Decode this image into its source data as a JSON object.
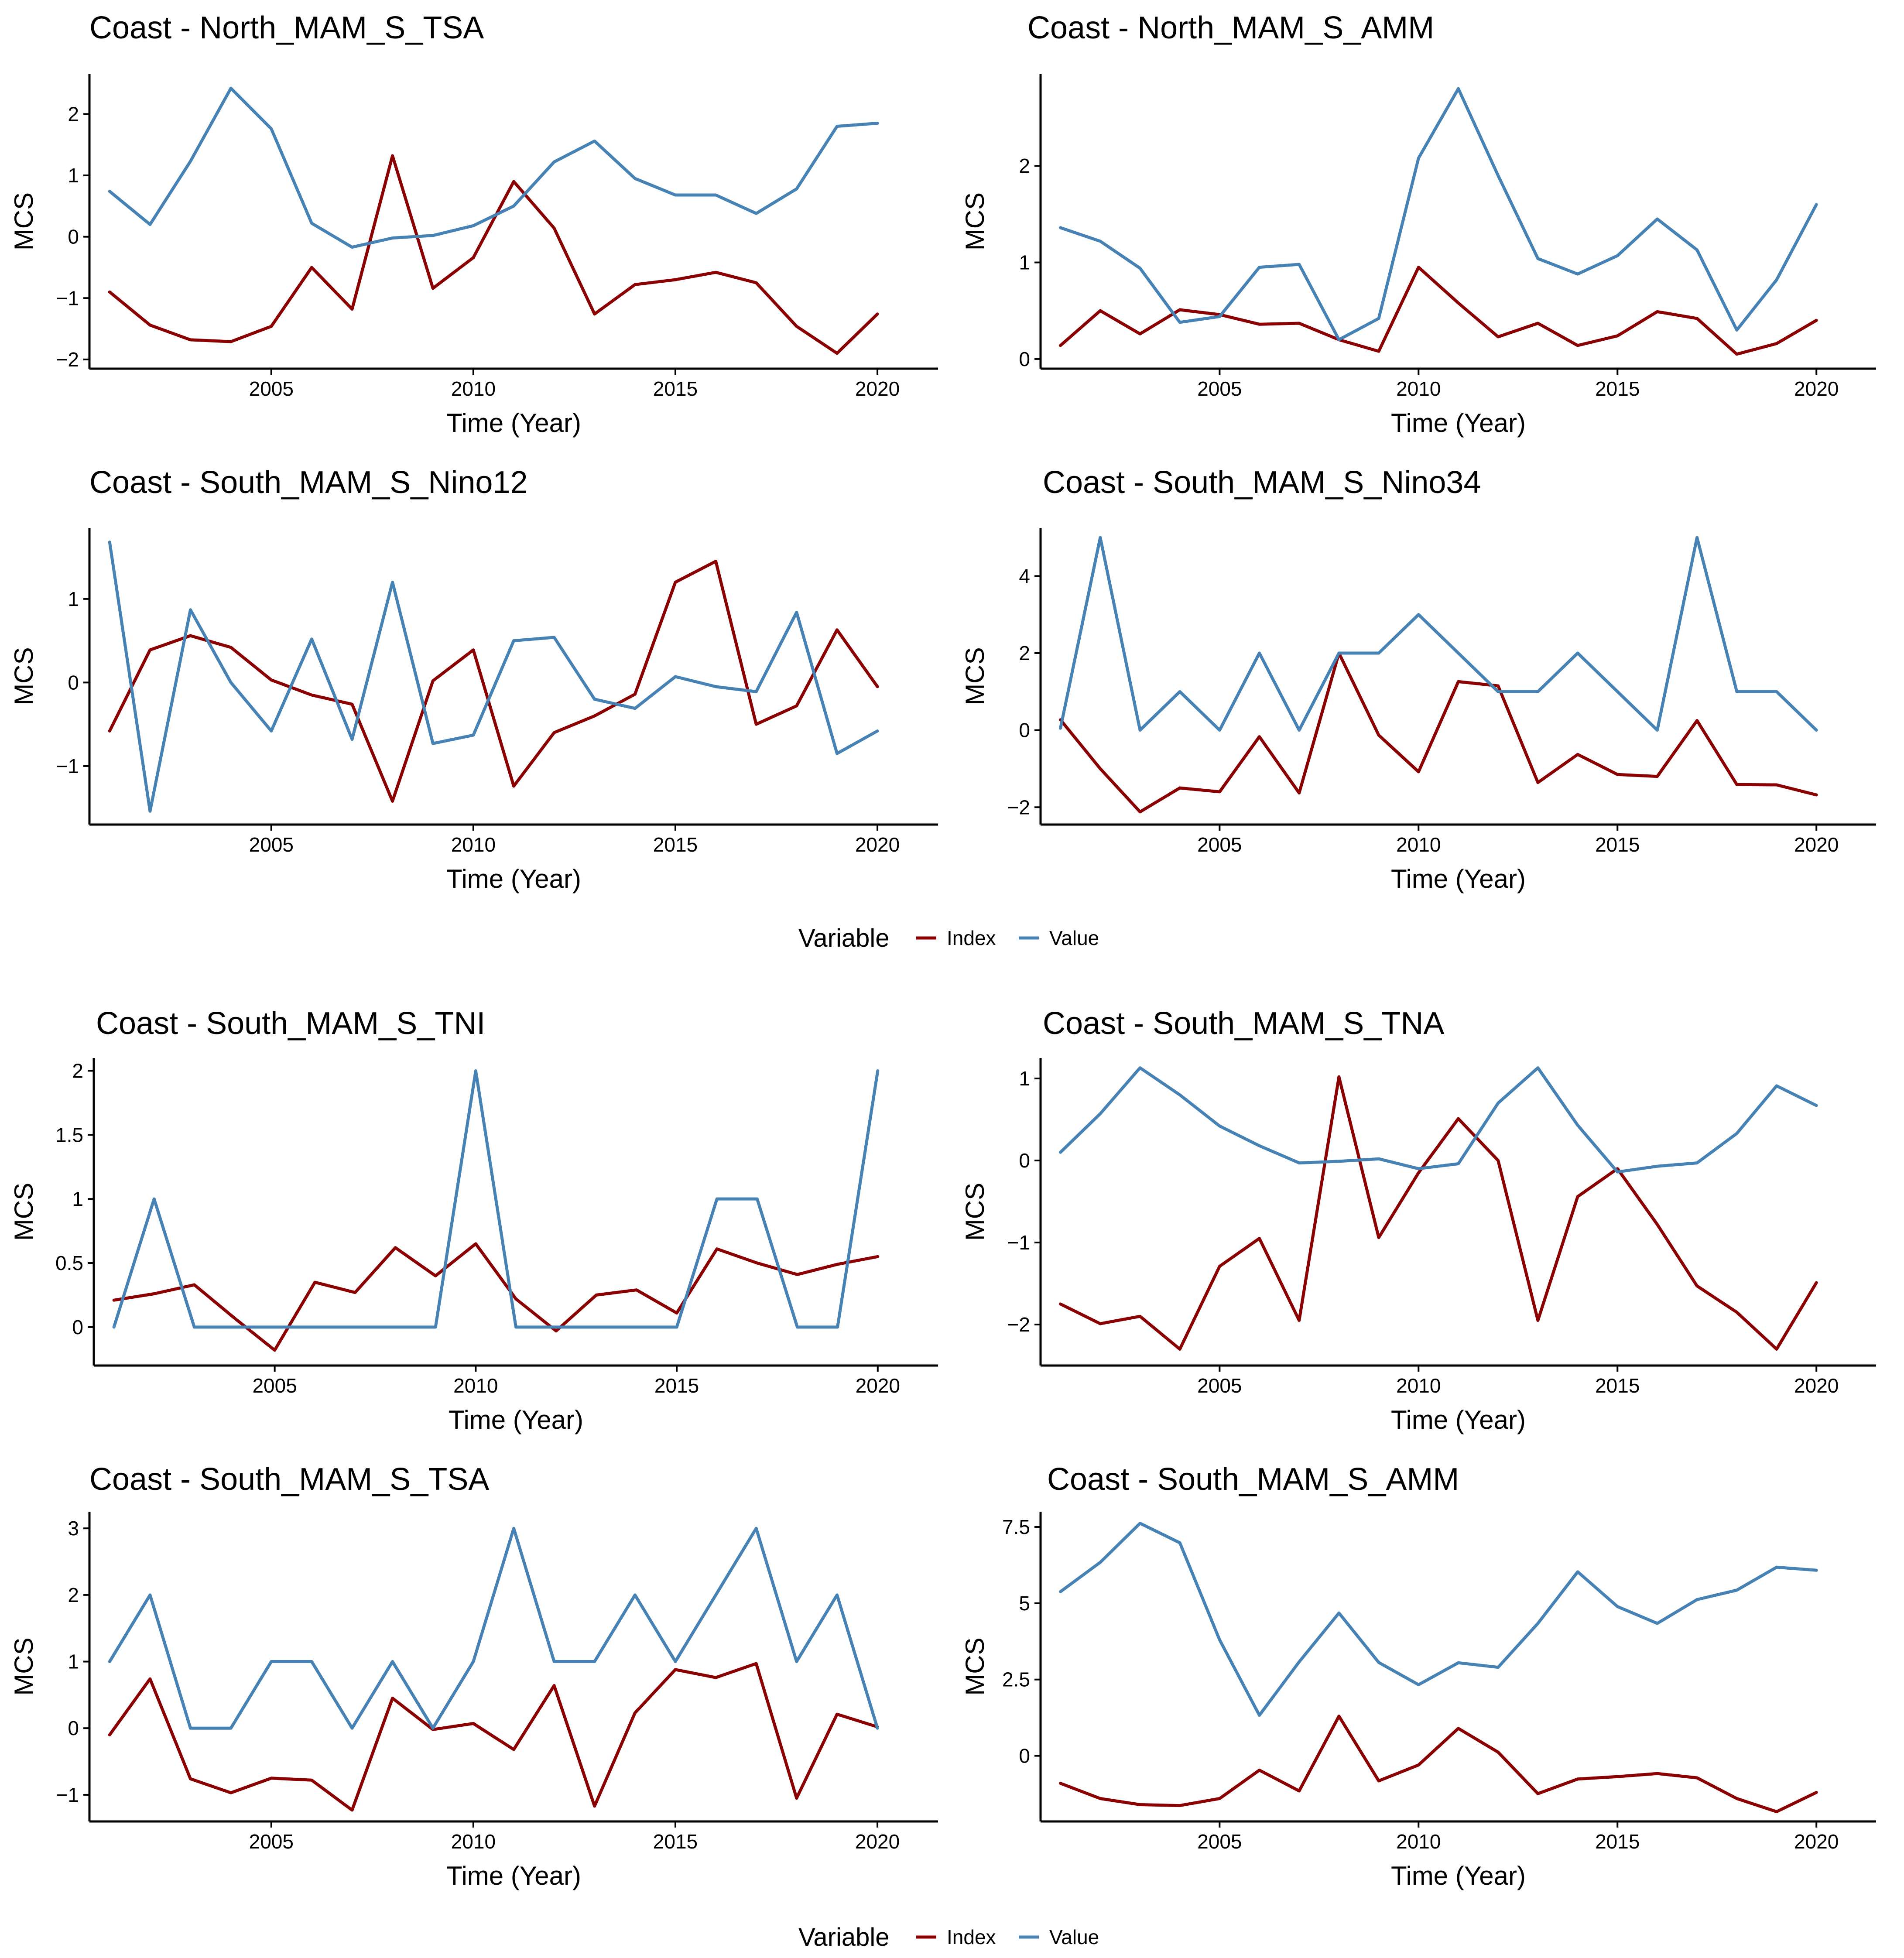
{
  "colors": {
    "index": "#8B0000",
    "value": "#4682B4"
  },
  "chart_data": [
    {
      "type": "line",
      "title": "Coast - North_MAM_S_TSA",
      "xlabel": "Time (Year)",
      "ylabel": "MCS",
      "xlim": [
        2000.5,
        2021.5
      ],
      "ylim": [
        -2.15,
        2.65
      ],
      "xticks": [
        2005,
        2010,
        2015,
        2020
      ],
      "xtick_labels": [
        "2005",
        "2010",
        "2015",
        "2020"
      ],
      "yticks": [
        -2,
        -1,
        0,
        1,
        2
      ],
      "ytick_labels": [
        "−2",
        "−1",
        "0",
        "1",
        "2"
      ],
      "x": [
        2001,
        2002,
        2003,
        2004,
        2005,
        2006,
        2007,
        2008,
        2009,
        2010,
        2011,
        2012,
        2013,
        2014,
        2015,
        2016,
        2017,
        2018,
        2019,
        2020
      ],
      "series": [
        {
          "name": "Index",
          "values": [
            -0.9,
            -1.44,
            -1.68,
            -1.71,
            -1.46,
            -0.5,
            -1.18,
            1.32,
            -0.84,
            -0.34,
            0.9,
            0.14,
            -1.26,
            -0.78,
            -0.7,
            -0.58,
            -0.75,
            -1.46,
            -1.9,
            -1.26
          ]
        },
        {
          "name": "Value",
          "values": [
            0.74,
            0.2,
            1.23,
            2.42,
            1.76,
            0.22,
            -0.17,
            -0.02,
            0.02,
            0.18,
            0.5,
            1.22,
            1.56,
            0.95,
            0.68,
            0.68,
            0.38,
            0.78,
            1.8,
            1.85
          ]
        }
      ]
    },
    {
      "type": "line",
      "title": "Coast - North_MAM_S_AMM",
      "xlabel": "Time (Year)",
      "ylabel": "MCS",
      "xlim": [
        2000.5,
        2021.5
      ],
      "ylim": [
        -0.1,
        2.95
      ],
      "xticks": [
        2005,
        2010,
        2015,
        2020
      ],
      "xtick_labels": [
        "2005",
        "2010",
        "2015",
        "2020"
      ],
      "yticks": [
        0,
        1,
        2
      ],
      "ytick_labels": [
        "0",
        "1",
        "2"
      ],
      "x": [
        2001,
        2002,
        2003,
        2004,
        2005,
        2006,
        2007,
        2008,
        2009,
        2010,
        2011,
        2012,
        2013,
        2014,
        2015,
        2016,
        2017,
        2018,
        2019,
        2020
      ],
      "series": [
        {
          "name": "Index",
          "values": [
            0.14,
            0.5,
            0.26,
            0.51,
            0.46,
            0.36,
            0.37,
            0.2,
            0.08,
            0.95,
            0.58,
            0.23,
            0.37,
            0.14,
            0.24,
            0.49,
            0.42,
            0.05,
            0.16,
            0.4
          ]
        },
        {
          "name": "Value",
          "values": [
            1.36,
            1.22,
            0.94,
            0.38,
            0.44,
            0.95,
            0.98,
            0.2,
            0.42,
            2.08,
            2.8,
            1.9,
            1.04,
            0.88,
            1.07,
            1.45,
            1.13,
            0.3,
            0.82,
            1.6
          ]
        }
      ]
    },
    {
      "type": "line",
      "title": "Coast - South_MAM_S_Nino12",
      "xlabel": "Time (Year)",
      "ylabel": "MCS",
      "xlim": [
        2000.5,
        2021.5
      ],
      "ylim": [
        -1.7,
        1.85
      ],
      "xticks": [
        2005,
        2010,
        2015,
        2020
      ],
      "xtick_labels": [
        "2005",
        "2010",
        "2015",
        "2020"
      ],
      "yticks": [
        -1,
        0,
        1
      ],
      "ytick_labels": [
        "−1",
        "0",
        "1"
      ],
      "x": [
        2001,
        2002,
        2003,
        2004,
        2005,
        2006,
        2007,
        2008,
        2009,
        2010,
        2011,
        2012,
        2013,
        2014,
        2015,
        2016,
        2017,
        2018,
        2019,
        2020
      ],
      "series": [
        {
          "name": "Index",
          "values": [
            -0.58,
            0.39,
            0.56,
            0.42,
            0.03,
            -0.15,
            -0.26,
            -1.42,
            0.02,
            0.39,
            -1.24,
            -0.6,
            -0.4,
            -0.14,
            1.2,
            1.45,
            -0.5,
            -0.28,
            0.63,
            -0.05
          ]
        },
        {
          "name": "Value",
          "values": [
            1.68,
            -1.54,
            0.87,
            0.0,
            -0.58,
            0.52,
            -0.68,
            1.2,
            -0.73,
            -0.63,
            0.5,
            0.54,
            -0.2,
            -0.31,
            0.07,
            -0.05,
            -0.11,
            0.84,
            -0.85,
            -0.58
          ]
        }
      ]
    },
    {
      "type": "line",
      "title": "Coast - South_MAM_S_Nino34",
      "xlabel": "Time (Year)",
      "ylabel": "MCS",
      "xlim": [
        2000.5,
        2021.5
      ],
      "ylim": [
        -2.45,
        5.25
      ],
      "xticks": [
        2005,
        2010,
        2015,
        2020
      ],
      "xtick_labels": [
        "2005",
        "2010",
        "2015",
        "2020"
      ],
      "yticks": [
        -2,
        0,
        2,
        4
      ],
      "ytick_labels": [
        "−2",
        "0",
        "2",
        "4"
      ],
      "x": [
        2001,
        2002,
        2003,
        2004,
        2005,
        2006,
        2007,
        2008,
        2009,
        2010,
        2011,
        2012,
        2013,
        2014,
        2015,
        2016,
        2017,
        2018,
        2019,
        2020
      ],
      "series": [
        {
          "name": "Index",
          "values": [
            0.27,
            -1.0,
            -2.12,
            -1.5,
            -1.6,
            -0.17,
            -1.63,
            2.0,
            -0.13,
            -1.08,
            1.26,
            1.15,
            -1.36,
            -0.63,
            -1.15,
            -1.2,
            0.25,
            -1.41,
            -1.42,
            -1.68
          ]
        },
        {
          "name": "Value",
          "values": [
            0.05,
            5.0,
            0.0,
            1.0,
            0.0,
            2.0,
            0.0,
            2.0,
            2.0,
            3.0,
            2.0,
            1.0,
            1.0,
            2.0,
            1.0,
            0.0,
            5.0,
            1.0,
            1.0,
            0.0
          ]
        }
      ]
    },
    {
      "type": "line",
      "title": "Coast - South_MAM_S_TNI",
      "xlabel": "Time (Year)",
      "ylabel": "MCS",
      "xlim": [
        2000.5,
        2021.5
      ],
      "ylim": [
        -0.3,
        2.1
      ],
      "xticks": [
        2005,
        2010,
        2015,
        2020
      ],
      "xtick_labels": [
        "2005",
        "2010",
        "2015",
        "2020"
      ],
      "yticks": [
        0,
        0.5,
        1,
        1.5,
        2
      ],
      "ytick_labels": [
        "0",
        "0.5",
        "1",
        "1.5",
        "2"
      ],
      "x": [
        2001,
        2002,
        2003,
        2004,
        2005,
        2006,
        2007,
        2008,
        2009,
        2010,
        2011,
        2012,
        2013,
        2014,
        2015,
        2016,
        2017,
        2018,
        2019,
        2020
      ],
      "series": [
        {
          "name": "Index",
          "values": [
            0.21,
            0.26,
            0.33,
            0.07,
            -0.18,
            0.35,
            0.27,
            0.62,
            0.4,
            0.65,
            0.22,
            -0.03,
            0.25,
            0.29,
            0.11,
            0.61,
            0.5,
            0.41,
            0.49,
            0.55
          ]
        },
        {
          "name": "Value",
          "values": [
            0.0,
            1.0,
            0.0,
            0.0,
            0.0,
            0.0,
            0.0,
            0.0,
            0.0,
            2.0,
            0.0,
            0.0,
            0.0,
            0.0,
            0.0,
            1.0,
            1.0,
            0.0,
            0.0,
            2.0
          ]
        }
      ]
    },
    {
      "type": "line",
      "title": "Coast - South_MAM_S_TNA",
      "xlabel": "Time (Year)",
      "ylabel": "MCS",
      "xlim": [
        2000.5,
        2021.5
      ],
      "ylim": [
        -2.5,
        1.25
      ],
      "xticks": [
        2005,
        2010,
        2015,
        2020
      ],
      "xtick_labels": [
        "2005",
        "2010",
        "2015",
        "2020"
      ],
      "yticks": [
        -2,
        -1,
        0,
        1
      ],
      "ytick_labels": [
        "−2",
        "−1",
        "0",
        "1"
      ],
      "x": [
        2001,
        2002,
        2003,
        2004,
        2005,
        2006,
        2007,
        2008,
        2009,
        2010,
        2011,
        2012,
        2013,
        2014,
        2015,
        2016,
        2017,
        2018,
        2019,
        2020
      ],
      "series": [
        {
          "name": "Index",
          "values": [
            -1.75,
            -1.99,
            -1.9,
            -2.3,
            -1.29,
            -0.95,
            -1.95,
            1.02,
            -0.94,
            -0.15,
            0.51,
            0.0,
            -1.95,
            -0.44,
            -0.1,
            -0.78,
            -1.53,
            -1.85,
            -2.3,
            -1.49
          ]
        },
        {
          "name": "Value",
          "values": [
            0.1,
            0.57,
            1.13,
            0.8,
            0.42,
            0.18,
            -0.03,
            -0.01,
            0.02,
            -0.1,
            -0.04,
            0.7,
            1.13,
            0.43,
            -0.14,
            -0.07,
            -0.03,
            0.33,
            0.91,
            0.67
          ]
        }
      ]
    },
    {
      "type": "line",
      "title": "Coast - South_MAM_S_TSA",
      "xlabel": "Time (Year)",
      "ylabel": "MCS",
      "xlim": [
        2000.5,
        2021.5
      ],
      "ylim": [
        -1.4,
        3.25
      ],
      "xticks": [
        2005,
        2010,
        2015,
        2020
      ],
      "xtick_labels": [
        "2005",
        "2010",
        "2015",
        "2020"
      ],
      "yticks": [
        -1,
        0,
        1,
        2,
        3
      ],
      "ytick_labels": [
        "−1",
        "0",
        "1",
        "2",
        "3"
      ],
      "x": [
        2001,
        2002,
        2003,
        2004,
        2005,
        2006,
        2007,
        2008,
        2009,
        2010,
        2011,
        2012,
        2013,
        2014,
        2015,
        2016,
        2017,
        2018,
        2019,
        2020
      ],
      "series": [
        {
          "name": "Index",
          "values": [
            -0.1,
            0.74,
            -0.76,
            -0.97,
            -0.75,
            -0.78,
            -1.23,
            0.45,
            -0.02,
            0.07,
            -0.32,
            0.64,
            -1.17,
            0.23,
            0.88,
            0.76,
            0.97,
            -1.05,
            0.21,
            0.02
          ]
        },
        {
          "name": "Value",
          "values": [
            1.0,
            2.0,
            0.0,
            0.0,
            1.0,
            1.0,
            0.0,
            1.0,
            0.0,
            1.0,
            3.0,
            1.0,
            1.0,
            2.0,
            1.0,
            2.0,
            3.0,
            1.0,
            2.0,
            0.0
          ]
        }
      ]
    },
    {
      "type": "line",
      "title": "Coast - South_MAM_S_AMM",
      "xlabel": "Time (Year)",
      "ylabel": "MCS",
      "xlim": [
        2000.5,
        2021.5
      ],
      "ylim": [
        -2.15,
        8.0
      ],
      "xticks": [
        2005,
        2010,
        2015,
        2020
      ],
      "xtick_labels": [
        "2005",
        "2010",
        "2015",
        "2020"
      ],
      "yticks": [
        0,
        2.5,
        5,
        7.5
      ],
      "ytick_labels": [
        "0",
        "2.5",
        "5",
        "7.5"
      ],
      "x": [
        2001,
        2002,
        2003,
        2004,
        2005,
        2006,
        2007,
        2008,
        2009,
        2010,
        2011,
        2012,
        2013,
        2014,
        2015,
        2016,
        2017,
        2018,
        2019,
        2020
      ],
      "series": [
        {
          "name": "Index",
          "values": [
            -0.9,
            -1.4,
            -1.6,
            -1.63,
            -1.4,
            -0.47,
            -1.15,
            1.3,
            -0.82,
            -0.3,
            0.9,
            0.12,
            -1.24,
            -0.76,
            -0.68,
            -0.58,
            -0.72,
            -1.4,
            -1.83,
            -1.2
          ]
        },
        {
          "name": "Value",
          "values": [
            5.38,
            6.34,
            7.62,
            6.98,
            3.8,
            1.33,
            3.08,
            4.68,
            3.06,
            2.33,
            3.05,
            2.9,
            4.34,
            6.03,
            4.89,
            4.34,
            5.12,
            5.43,
            6.18,
            6.08
          ]
        }
      ]
    }
  ],
  "legends": [
    {
      "title": "Variable",
      "items": [
        "Index",
        "Value"
      ]
    },
    {
      "title": "Variable",
      "items": [
        "Index",
        "Value"
      ]
    }
  ]
}
